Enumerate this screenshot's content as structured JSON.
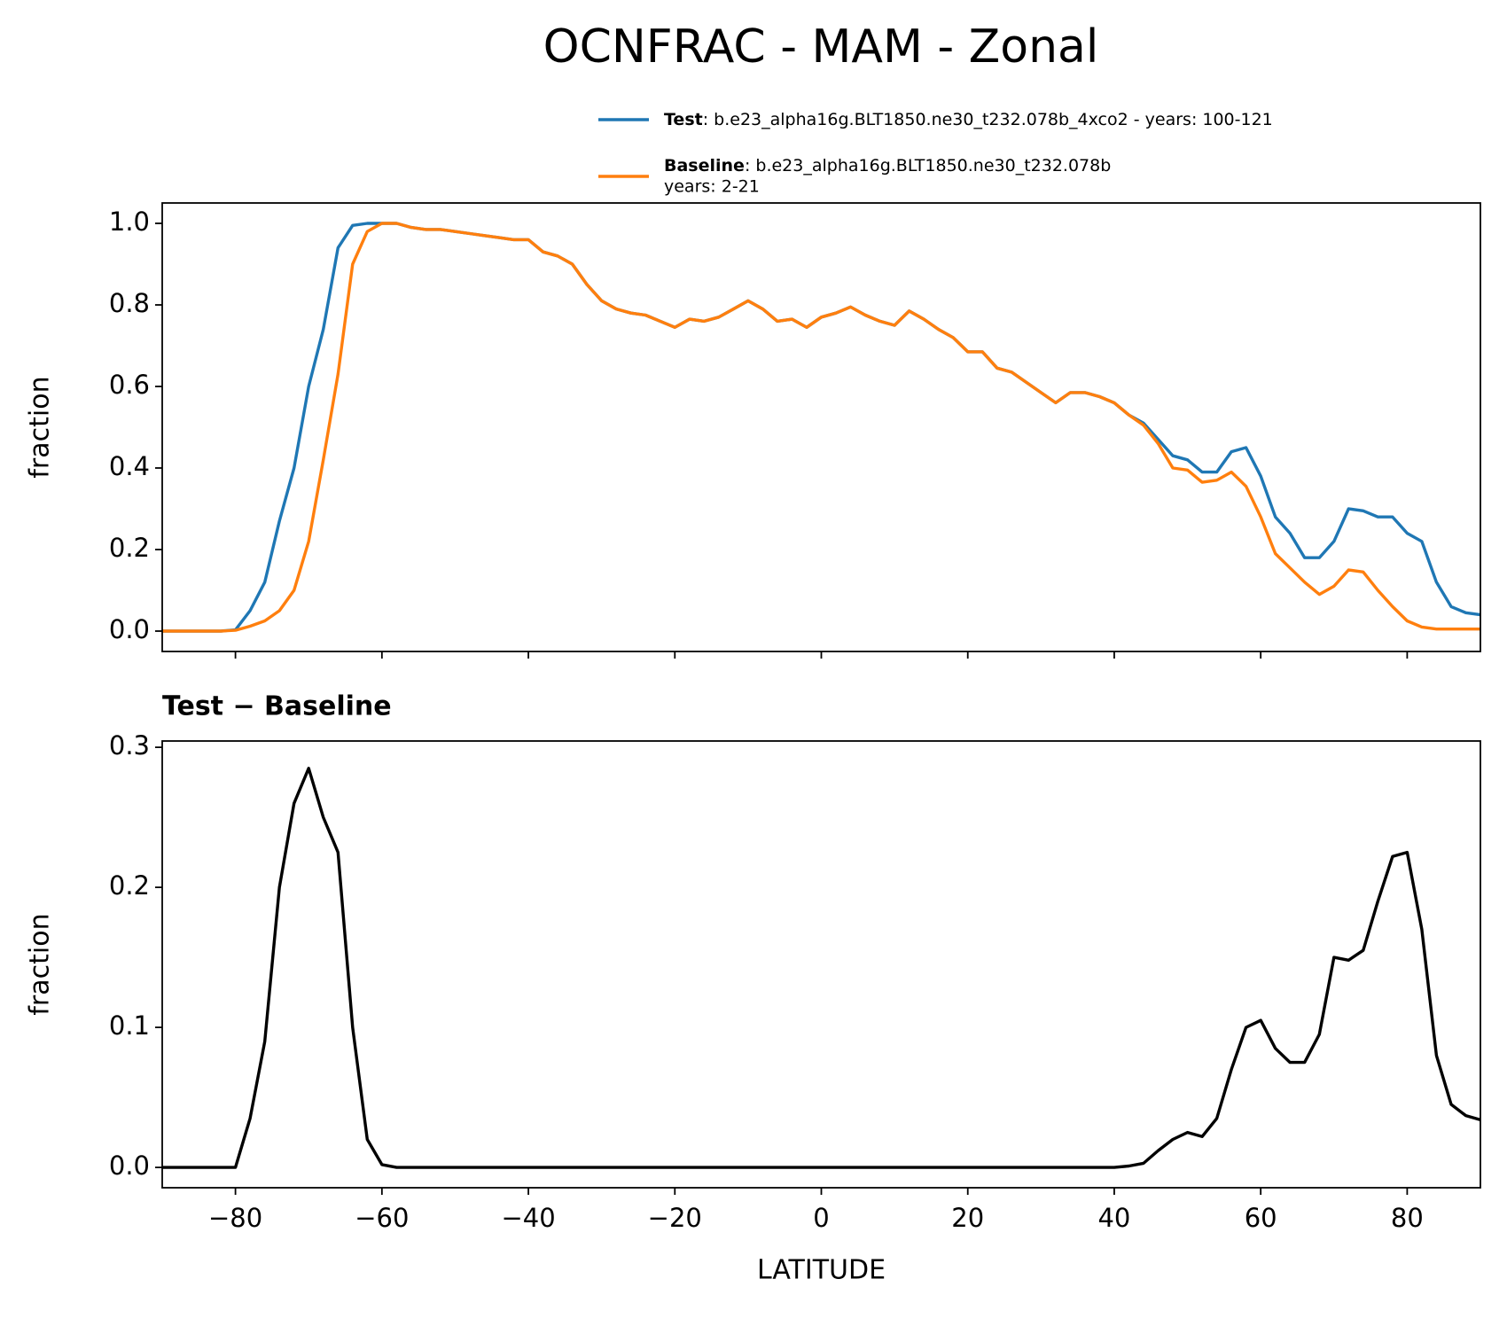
{
  "title": "OCNFRAC - MAM - Zonal",
  "chart_data": [
    {
      "type": "line",
      "ylabel": "fraction",
      "x": [
        -90,
        -88,
        -86,
        -84,
        -82,
        -80,
        -78,
        -76,
        -74,
        -72,
        -70,
        -68,
        -66,
        -64,
        -62,
        -60,
        -58,
        -56,
        -54,
        -52,
        -50,
        -48,
        -46,
        -44,
        -42,
        -40,
        -38,
        -36,
        -34,
        -32,
        -30,
        -28,
        -26,
        -24,
        -22,
        -20,
        -18,
        -16,
        -14,
        -12,
        -10,
        -8,
        -6,
        -4,
        -2,
        0,
        2,
        4,
        6,
        8,
        10,
        12,
        14,
        16,
        18,
        20,
        22,
        24,
        26,
        28,
        30,
        32,
        34,
        36,
        38,
        40,
        42,
        44,
        46,
        48,
        50,
        52,
        54,
        56,
        58,
        60,
        62,
        64,
        66,
        68,
        70,
        72,
        74,
        76,
        78,
        80,
        82,
        84,
        86,
        88,
        90
      ],
      "series": [
        {
          "name": "Test",
          "legend_lines": [
            ": b.e23_alpha16g.BLT1850.ne30_t232.078b_4xco2 - years: 100-121"
          ],
          "color": "#1f77b4",
          "values": [
            0,
            0,
            0,
            0,
            0,
            0.003,
            0.05,
            0.12,
            0.27,
            0.4,
            0.6,
            0.74,
            0.94,
            0.995,
            1,
            1,
            1,
            0.99,
            0.985,
            0.985,
            0.98,
            0.975,
            0.97,
            0.965,
            0.96,
            0.96,
            0.93,
            0.92,
            0.9,
            0.85,
            0.81,
            0.79,
            0.78,
            0.775,
            0.76,
            0.745,
            0.765,
            0.76,
            0.77,
            0.79,
            0.81,
            0.79,
            0.76,
            0.765,
            0.745,
            0.77,
            0.78,
            0.795,
            0.775,
            0.76,
            0.75,
            0.785,
            0.765,
            0.74,
            0.72,
            0.685,
            0.685,
            0.645,
            0.635,
            0.61,
            0.585,
            0.56,
            0.585,
            0.585,
            0.575,
            0.56,
            0.53,
            0.51,
            0.47,
            0.43,
            0.42,
            0.39,
            0.39,
            0.44,
            0.45,
            0.38,
            0.28,
            0.24,
            0.18,
            0.18,
            0.22,
            0.3,
            0.295,
            0.28,
            0.28,
            0.24,
            0.22,
            0.12,
            0.06,
            0.045,
            0.04
          ]
        },
        {
          "name": "Baseline",
          "legend_lines": [
            ": b.e23_alpha16g.BLT1850.ne30_t232.078b",
            "years: 2-21"
          ],
          "color": "#ff7f0e",
          "values": [
            0,
            0,
            0,
            0,
            0,
            0.002,
            0.012,
            0.025,
            0.05,
            0.1,
            0.22,
            0.42,
            0.63,
            0.9,
            0.98,
            1,
            1,
            0.99,
            0.985,
            0.985,
            0.98,
            0.975,
            0.97,
            0.965,
            0.96,
            0.96,
            0.93,
            0.92,
            0.9,
            0.85,
            0.81,
            0.79,
            0.78,
            0.775,
            0.76,
            0.745,
            0.765,
            0.76,
            0.77,
            0.79,
            0.81,
            0.79,
            0.76,
            0.765,
            0.745,
            0.77,
            0.78,
            0.795,
            0.775,
            0.76,
            0.75,
            0.785,
            0.765,
            0.74,
            0.72,
            0.685,
            0.685,
            0.645,
            0.635,
            0.61,
            0.585,
            0.56,
            0.585,
            0.585,
            0.575,
            0.56,
            0.53,
            0.505,
            0.46,
            0.4,
            0.395,
            0.365,
            0.37,
            0.39,
            0.355,
            0.28,
            0.19,
            0.155,
            0.12,
            0.09,
            0.11,
            0.15,
            0.145,
            0.1,
            0.06,
            0.025,
            0.01,
            0.005,
            0.005,
            0.005,
            0.005
          ]
        }
      ],
      "xlim": [
        -90,
        90
      ],
      "xticks": [
        {
          "value": -80,
          "label": "−80"
        },
        {
          "value": -60,
          "label": "−60"
        },
        {
          "value": -40,
          "label": "−40"
        },
        {
          "value": -20,
          "label": "−20"
        },
        0,
        20,
        40,
        60,
        80
      ],
      "ylim": [
        -0.05,
        1.05
      ],
      "yticks": [
        {
          "value": 0,
          "label": "0.0"
        },
        0.2,
        0.4,
        0.6,
        0.8,
        {
          "value": 1,
          "label": "1.0"
        }
      ]
    },
    {
      "type": "line",
      "title": "Test − Baseline",
      "xlabel": "LATITUDE",
      "ylabel": "fraction",
      "x": [
        -90,
        -88,
        -86,
        -84,
        -82,
        -80,
        -78,
        -76,
        -74,
        -72,
        -70,
        -68,
        -66,
        -64,
        -62,
        -60,
        -58,
        -56,
        -54,
        -52,
        -50,
        -48,
        -46,
        -44,
        -42,
        -40,
        -38,
        -36,
        -34,
        -32,
        -30,
        -28,
        -26,
        -24,
        -22,
        -20,
        -18,
        -16,
        -14,
        -12,
        -10,
        -8,
        -6,
        -4,
        -2,
        0,
        2,
        4,
        6,
        8,
        10,
        12,
        14,
        16,
        18,
        20,
        22,
        24,
        26,
        28,
        30,
        32,
        34,
        36,
        38,
        40,
        42,
        44,
        46,
        48,
        50,
        52,
        54,
        56,
        58,
        60,
        62,
        64,
        66,
        68,
        70,
        72,
        74,
        76,
        78,
        80,
        82,
        84,
        86,
        88,
        90
      ],
      "series": [
        {
          "color": "#000000",
          "values": [
            0,
            0,
            0,
            0,
            0,
            0,
            0.035,
            0.09,
            0.2,
            0.26,
            0.285,
            0.25,
            0.225,
            0.1,
            0.02,
            0.002,
            0,
            0,
            0,
            0,
            0,
            0,
            0,
            0,
            0,
            0,
            0,
            0,
            0,
            0,
            0,
            0,
            0,
            0,
            0,
            0,
            0,
            0,
            0,
            0,
            0,
            0,
            0,
            0,
            0,
            0,
            0,
            0,
            0,
            0,
            0,
            0,
            0,
            0,
            0,
            0,
            0,
            0,
            0,
            0,
            0,
            0,
            0,
            0,
            0,
            0,
            0.001,
            0.003,
            0.012,
            0.02,
            0.025,
            0.022,
            0.035,
            0.07,
            0.1,
            0.105,
            0.085,
            0.075,
            0.075,
            0.095,
            0.15,
            0.148,
            0.155,
            0.19,
            0.222,
            0.225,
            0.17,
            0.08,
            0.045,
            0.037,
            0.034
          ]
        }
      ],
      "xlim": [
        -90,
        90
      ],
      "xticks": [
        {
          "value": -80,
          "label": "−80"
        },
        {
          "value": -60,
          "label": "−60"
        },
        {
          "value": -40,
          "label": "−40"
        },
        {
          "value": -20,
          "label": "−20"
        },
        0,
        20,
        40,
        60,
        80
      ],
      "ylim": [
        -0.0145,
        0.3045
      ],
      "yticks": [
        {
          "value": 0,
          "label": "0.0"
        },
        0.1,
        0.2,
        0.3
      ]
    }
  ]
}
